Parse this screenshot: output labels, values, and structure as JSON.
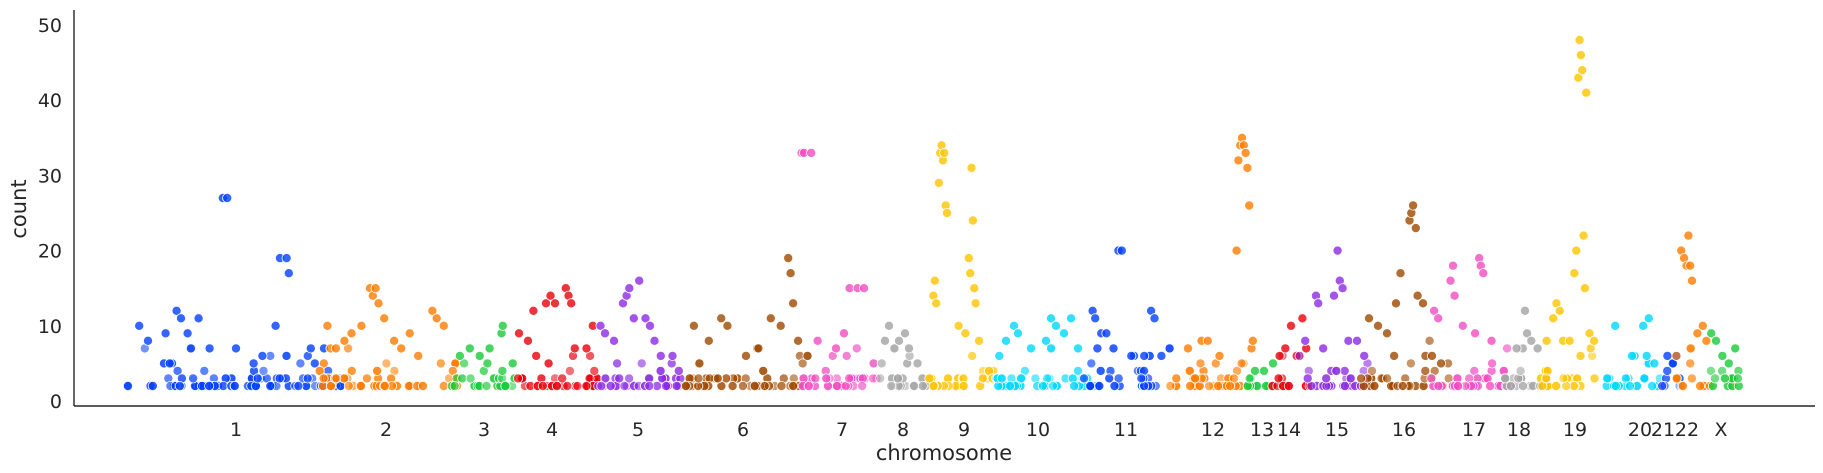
{
  "chart_data": {
    "type": "scatter",
    "title": "",
    "xlabel": "chromosome",
    "ylabel": "count",
    "ylim": [
      0,
      52
    ],
    "y_ticks": [
      0,
      10,
      20,
      30,
      40,
      50
    ],
    "grid": false,
    "legend": "none",
    "chromosomes": [
      {
        "label": "1",
        "color": "#023eff",
        "bg": 4,
        "points": [
          [
            0.06,
            10
          ],
          [
            0.1,
            8
          ],
          [
            0.18,
            9
          ],
          [
            0.23,
            12
          ],
          [
            0.25,
            11
          ],
          [
            0.28,
            9
          ],
          [
            0.33,
            11
          ],
          [
            0.38,
            7
          ],
          [
            0.44,
            27
          ],
          [
            0.46,
            27
          ],
          [
            0.5,
            7
          ],
          [
            0.58,
            5
          ],
          [
            0.62,
            6
          ],
          [
            0.68,
            10
          ],
          [
            0.7,
            19
          ],
          [
            0.73,
            19
          ],
          [
            0.74,
            17
          ],
          [
            0.84,
            7
          ],
          [
            0.9,
            7
          ]
        ]
      },
      {
        "label": "2",
        "color": "#ff7c00",
        "bg": 4,
        "points": [
          [
            0.08,
            10
          ],
          [
            0.14,
            7
          ],
          [
            0.2,
            8
          ],
          [
            0.25,
            9
          ],
          [
            0.32,
            10
          ],
          [
            0.38,
            15
          ],
          [
            0.4,
            14
          ],
          [
            0.42,
            15
          ],
          [
            0.44,
            13
          ],
          [
            0.48,
            11
          ],
          [
            0.55,
            8
          ],
          [
            0.6,
            7
          ],
          [
            0.66,
            9
          ],
          [
            0.72,
            6
          ],
          [
            0.82,
            12
          ],
          [
            0.85,
            11
          ],
          [
            0.9,
            10
          ]
        ]
      },
      {
        "label": "3",
        "color": "#1ac938",
        "bg": 3,
        "points": [
          [
            0.15,
            6
          ],
          [
            0.3,
            7
          ],
          [
            0.45,
            6
          ],
          [
            0.6,
            7
          ],
          [
            0.78,
            9
          ],
          [
            0.8,
            10
          ],
          [
            0.95,
            5
          ]
        ]
      },
      {
        "label": "4",
        "color": "#e8000b",
        "bg": 3,
        "points": [
          [
            0.1,
            9
          ],
          [
            0.2,
            8
          ],
          [
            0.26,
            12
          ],
          [
            0.4,
            13
          ],
          [
            0.45,
            14
          ],
          [
            0.5,
            13
          ],
          [
            0.62,
            15
          ],
          [
            0.65,
            14
          ],
          [
            0.68,
            13
          ],
          [
            0.72,
            7
          ],
          [
            0.85,
            7
          ],
          [
            0.92,
            10
          ]
        ]
      },
      {
        "label": "5",
        "color": "#8b2be2",
        "bg": 4,
        "points": [
          [
            0.05,
            10
          ],
          [
            0.1,
            9
          ],
          [
            0.2,
            8
          ],
          [
            0.3,
            13
          ],
          [
            0.34,
            14
          ],
          [
            0.37,
            15
          ],
          [
            0.42,
            11
          ],
          [
            0.48,
            16
          ],
          [
            0.55,
            11
          ],
          [
            0.6,
            10
          ],
          [
            0.65,
            8
          ],
          [
            0.72,
            6
          ],
          [
            0.85,
            6
          ],
          [
            0.92,
            4
          ]
        ]
      },
      {
        "label": "6",
        "color": "#9f4800",
        "bg": 4,
        "points": [
          [
            0.08,
            10
          ],
          [
            0.2,
            8
          ],
          [
            0.3,
            11
          ],
          [
            0.35,
            10
          ],
          [
            0.5,
            6
          ],
          [
            0.6,
            7
          ],
          [
            0.7,
            11
          ],
          [
            0.78,
            10
          ],
          [
            0.84,
            19
          ],
          [
            0.86,
            17
          ],
          [
            0.88,
            13
          ],
          [
            0.92,
            8
          ]
        ]
      },
      {
        "label": "7",
        "color": "#f14cc1",
        "bg": 3,
        "points": [
          [
            0.02,
            33
          ],
          [
            0.05,
            33
          ],
          [
            0.14,
            33
          ],
          [
            0.22,
            8
          ],
          [
            0.45,
            7
          ],
          [
            0.55,
            9
          ],
          [
            0.62,
            15
          ],
          [
            0.72,
            15
          ],
          [
            0.8,
            15
          ],
          [
            0.92,
            5
          ]
        ]
      },
      {
        "label": "8",
        "color": "#a3a3a3",
        "bg": 3,
        "points": [
          [
            0.1,
            8
          ],
          [
            0.18,
            10
          ],
          [
            0.38,
            8
          ],
          [
            0.5,
            9
          ],
          [
            0.58,
            7
          ],
          [
            0.75,
            5
          ]
        ]
      },
      {
        "label": "9",
        "color": "#ffc400",
        "bg": 4,
        "points": [
          [
            0.08,
            14
          ],
          [
            0.1,
            16
          ],
          [
            0.12,
            13
          ],
          [
            0.16,
            29
          ],
          [
            0.18,
            33
          ],
          [
            0.2,
            34
          ],
          [
            0.22,
            32
          ],
          [
            0.24,
            33
          ],
          [
            0.26,
            26
          ],
          [
            0.28,
            25
          ],
          [
            0.45,
            10
          ],
          [
            0.55,
            9
          ],
          [
            0.6,
            19
          ],
          [
            0.62,
            17
          ],
          [
            0.64,
            31
          ],
          [
            0.66,
            24
          ],
          [
            0.68,
            15
          ],
          [
            0.7,
            13
          ],
          [
            0.75,
            8
          ]
        ]
      },
      {
        "label": "10",
        "color": "#00d7ff",
        "bg": 4,
        "points": [
          [
            0.1,
            8
          ],
          [
            0.18,
            10
          ],
          [
            0.22,
            9
          ],
          [
            0.35,
            7
          ],
          [
            0.5,
            8
          ],
          [
            0.55,
            11
          ],
          [
            0.6,
            10
          ],
          [
            0.68,
            9
          ],
          [
            0.75,
            11
          ],
          [
            0.82,
            7
          ]
        ]
      },
      {
        "label": "11",
        "color": "#023eff",
        "bg": 4,
        "points": [
          [
            0.1,
            12
          ],
          [
            0.13,
            11
          ],
          [
            0.2,
            9
          ],
          [
            0.26,
            9
          ],
          [
            0.4,
            20
          ],
          [
            0.44,
            20
          ],
          [
            0.55,
            6
          ],
          [
            0.7,
            6
          ],
          [
            0.78,
            12
          ],
          [
            0.82,
            11
          ],
          [
            0.9,
            6
          ]
        ]
      },
      {
        "label": "12",
        "color": "#ff7c00",
        "bg": 4,
        "points": [
          [
            0.2,
            7
          ],
          [
            0.35,
            8
          ],
          [
            0.42,
            8
          ],
          [
            0.55,
            6
          ],
          [
            0.74,
            20
          ],
          [
            0.76,
            32
          ],
          [
            0.78,
            34
          ],
          [
            0.8,
            35
          ],
          [
            0.82,
            34
          ],
          [
            0.84,
            33
          ],
          [
            0.86,
            31
          ],
          [
            0.88,
            26
          ],
          [
            0.92,
            8
          ]
        ]
      },
      {
        "label": "13",
        "color": "#1ac938",
        "bg": 2,
        "points": [
          [
            0.3,
            4
          ],
          [
            0.6,
            4
          ],
          [
            0.9,
            5
          ]
        ]
      },
      {
        "label": "14",
        "color": "#e8000b",
        "bg": 3,
        "points": [
          [
            0.2,
            6
          ],
          [
            0.35,
            7
          ],
          [
            0.5,
            10
          ],
          [
            0.65,
            6
          ],
          [
            0.8,
            11
          ],
          [
            0.9,
            7
          ]
        ]
      },
      {
        "label": "15",
        "color": "#8b2be2",
        "bg": 3,
        "points": [
          [
            0.1,
            8
          ],
          [
            0.25,
            14
          ],
          [
            0.28,
            13
          ],
          [
            0.35,
            7
          ],
          [
            0.5,
            14
          ],
          [
            0.55,
            20
          ],
          [
            0.58,
            16
          ],
          [
            0.62,
            15
          ],
          [
            0.7,
            8
          ],
          [
            0.82,
            8
          ],
          [
            0.92,
            6
          ]
        ]
      },
      {
        "label": "16",
        "color": "#9f4800",
        "bg": 4,
        "points": [
          [
            0.1,
            11
          ],
          [
            0.2,
            10
          ],
          [
            0.3,
            9
          ],
          [
            0.4,
            13
          ],
          [
            0.45,
            17
          ],
          [
            0.55,
            24
          ],
          [
            0.57,
            25
          ],
          [
            0.59,
            26
          ],
          [
            0.62,
            23
          ],
          [
            0.64,
            14
          ],
          [
            0.7,
            13
          ],
          [
            0.8,
            6
          ],
          [
            0.9,
            5
          ]
        ]
      },
      {
        "label": "17",
        "color": "#f14cc1",
        "bg": 4,
        "points": [
          [
            0.05,
            12
          ],
          [
            0.1,
            11
          ],
          [
            0.25,
            16
          ],
          [
            0.28,
            18
          ],
          [
            0.3,
            14
          ],
          [
            0.4,
            10
          ],
          [
            0.55,
            9
          ],
          [
            0.6,
            19
          ],
          [
            0.62,
            18
          ],
          [
            0.65,
            17
          ],
          [
            0.75,
            8
          ],
          [
            0.9,
            4
          ]
        ]
      },
      {
        "label": "18",
        "color": "#a3a3a3",
        "bg": 3,
        "points": [
          [
            0.3,
            7
          ],
          [
            0.5,
            12
          ],
          [
            0.55,
            9
          ],
          [
            0.65,
            8
          ],
          [
            0.8,
            7
          ]
        ]
      },
      {
        "label": "19",
        "color": "#ffc400",
        "bg": 4,
        "points": [
          [
            0.1,
            8
          ],
          [
            0.2,
            11
          ],
          [
            0.25,
            13
          ],
          [
            0.3,
            12
          ],
          [
            0.35,
            8
          ],
          [
            0.45,
            8
          ],
          [
            0.52,
            17
          ],
          [
            0.55,
            20
          ],
          [
            0.58,
            43
          ],
          [
            0.6,
            48
          ],
          [
            0.62,
            46
          ],
          [
            0.64,
            44
          ],
          [
            0.66,
            22
          ],
          [
            0.68,
            15
          ],
          [
            0.7,
            41
          ],
          [
            0.75,
            9
          ],
          [
            0.82,
            8
          ]
        ]
      },
      {
        "label": "20",
        "color": "#00d7ff",
        "bg": 3,
        "points": [
          [
            0.2,
            10
          ],
          [
            0.5,
            6
          ],
          [
            0.7,
            10
          ],
          [
            0.8,
            11
          ],
          [
            0.9,
            5
          ]
        ]
      },
      {
        "label": "21",
        "color": "#023eff",
        "bg": 2,
        "points": [
          [
            0.3,
            6
          ],
          [
            0.6,
            5
          ],
          [
            0.8,
            6
          ]
        ]
      },
      {
        "label": "22",
        "color": "#ff7c00",
        "bg": 3,
        "points": [
          [
            0.2,
            20
          ],
          [
            0.28,
            19
          ],
          [
            0.35,
            18
          ],
          [
            0.4,
            22
          ],
          [
            0.45,
            18
          ],
          [
            0.5,
            16
          ],
          [
            0.65,
            9
          ],
          [
            0.8,
            10
          ],
          [
            0.9,
            8
          ]
        ]
      },
      {
        "label": "X",
        "color": "#1ac938",
        "bg": 3,
        "points": [
          [
            0.1,
            9
          ],
          [
            0.25,
            8
          ],
          [
            0.45,
            6
          ],
          [
            0.65,
            5
          ],
          [
            0.85,
            7
          ]
        ]
      }
    ]
  }
}
